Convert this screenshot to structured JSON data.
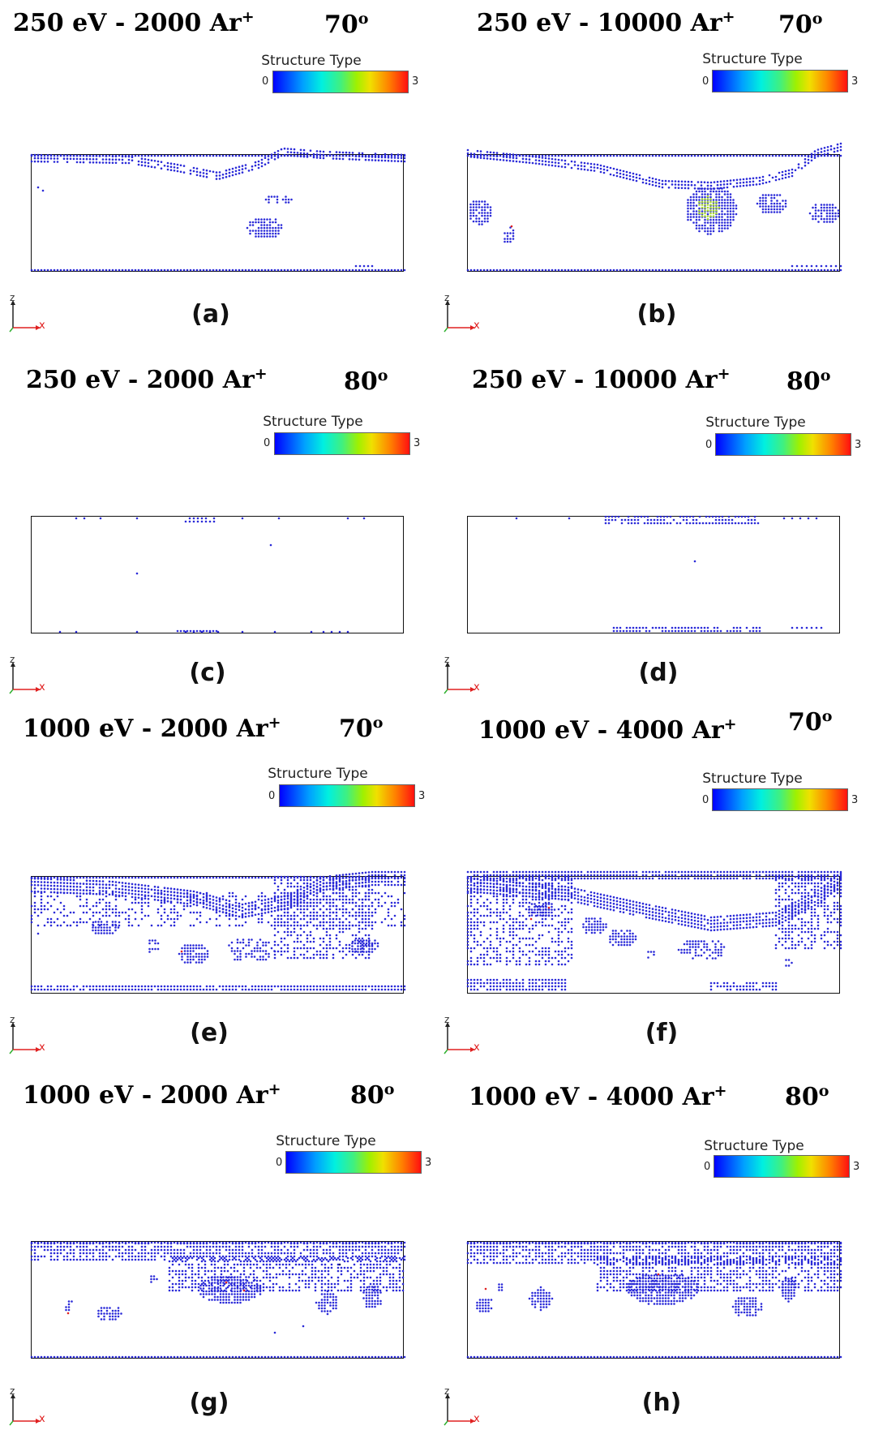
{
  "colorbar": {
    "title": "Structure Type",
    "min": "0",
    "max": "3"
  },
  "axes": {
    "z": "z",
    "x": "x"
  },
  "panels": [
    {
      "title": "250 eV - 2000 Ar",
      "sup": "+",
      "angle": "70",
      "deg": "o",
      "label": "(a)"
    },
    {
      "title": "250 eV - 10000 Ar",
      "sup": "+",
      "angle": "70",
      "deg": "o",
      "label": "(b)"
    },
    {
      "title": "250 eV - 2000 Ar",
      "sup": "+",
      "angle": "80",
      "deg": "o",
      "label": "(c)"
    },
    {
      "title": "250 eV - 10000 Ar",
      "sup": "+",
      "angle": "80",
      "deg": "o",
      "label": "(d)"
    },
    {
      "title": "1000 eV - 2000 Ar",
      "sup": "+",
      "angle": "70",
      "deg": "o",
      "label": "(e)"
    },
    {
      "title": "1000 eV - 4000 Ar",
      "sup": "+",
      "angle": "70",
      "deg": "o",
      "label": "(f)"
    },
    {
      "title": "1000 eV - 2000 Ar",
      "sup": "+",
      "angle": "80",
      "deg": "o",
      "label": "(g)"
    },
    {
      "title": "1000 eV - 4000 Ar",
      "sup": "+",
      "angle": "80",
      "deg": "o",
      "label": "(h)"
    }
  ],
  "colors": {
    "atom": "#2a2ad8",
    "atom_dark": "#101060",
    "defect_red": "#e02020",
    "defect_green": "#a8d830"
  }
}
